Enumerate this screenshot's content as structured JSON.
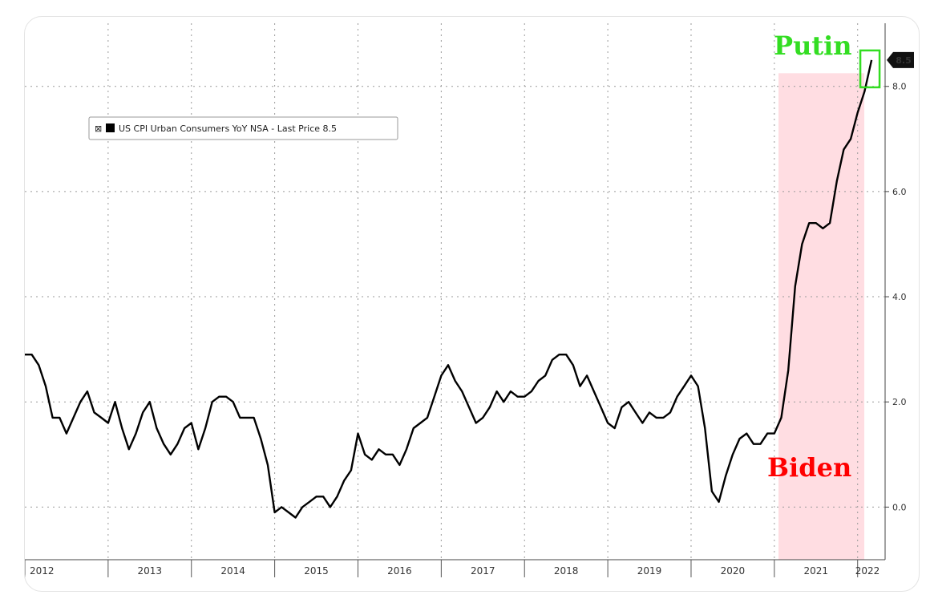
{
  "chart_data": {
    "type": "line",
    "legend": {
      "icon": "x-icon",
      "label": "US CPI Urban Consumers YoY NSA - Last Price 8.5",
      "placement": "top-left"
    },
    "last_price_label": "8.5",
    "y_ticks": [
      "0.0",
      "2.0",
      "4.0",
      "6.0",
      "8.0"
    ],
    "y_tick_values": [
      0,
      2,
      4,
      6,
      8
    ],
    "ylim": [
      -1.0,
      9.2
    ],
    "x_range": [
      2012.0,
      2022.33
    ],
    "year_labels": [
      "2012",
      "2013",
      "2014",
      "2015",
      "2016",
      "2017",
      "2018",
      "2019",
      "2020",
      "2021",
      "2022"
    ],
    "year_label_positions": [
      2012.0,
      2013.0,
      2014.0,
      2015.0,
      2016.0,
      2017.0,
      2018.0,
      2019.0,
      2020.0,
      2021.0,
      2022.0
    ],
    "grid": true,
    "line_color": "#000000",
    "series": [
      {
        "x": [
          2012.0,
          2012.083,
          2012.167,
          2012.25,
          2012.333,
          2012.417,
          2012.5,
          2012.583,
          2012.667,
          2012.75,
          2012.833,
          2012.917,
          2013.0,
          2013.083,
          2013.167,
          2013.25,
          2013.333,
          2013.417,
          2013.5,
          2013.583,
          2013.667,
          2013.75,
          2013.833,
          2013.917,
          2014.0,
          2014.083,
          2014.167,
          2014.25,
          2014.333,
          2014.417,
          2014.5,
          2014.583,
          2014.667,
          2014.75,
          2014.833,
          2014.917,
          2015.0,
          2015.083,
          2015.167,
          2015.25,
          2015.333,
          2015.417,
          2015.5,
          2015.583,
          2015.667,
          2015.75,
          2015.833,
          2015.917,
          2016.0,
          2016.083,
          2016.167,
          2016.25,
          2016.333,
          2016.417,
          2016.5,
          2016.583,
          2016.667,
          2016.75,
          2016.833,
          2016.917,
          2017.0,
          2017.083,
          2017.167,
          2017.25,
          2017.333,
          2017.417,
          2017.5,
          2017.583,
          2017.667,
          2017.75,
          2017.833,
          2017.917,
          2018.0,
          2018.083,
          2018.167,
          2018.25,
          2018.333,
          2018.417,
          2018.5,
          2018.583,
          2018.667,
          2018.75,
          2018.833,
          2018.917,
          2019.0,
          2019.083,
          2019.167,
          2019.25,
          2019.333,
          2019.417,
          2019.5,
          2019.583,
          2019.667,
          2019.75,
          2019.833,
          2019.917,
          2020.0,
          2020.083,
          2020.167,
          2020.25,
          2020.333,
          2020.417,
          2020.5,
          2020.583,
          2020.667,
          2020.75,
          2020.833,
          2020.917,
          2021.0,
          2021.083,
          2021.167,
          2021.25,
          2021.333,
          2021.417,
          2021.5,
          2021.583,
          2021.667,
          2021.75,
          2021.833,
          2021.917,
          2022.0,
          2022.083,
          2022.167
        ],
        "y": [
          2.9,
          2.9,
          2.7,
          2.3,
          1.7,
          1.7,
          1.4,
          1.7,
          2.0,
          2.2,
          1.8,
          1.7,
          1.6,
          2.0,
          1.5,
          1.1,
          1.4,
          1.8,
          2.0,
          1.5,
          1.2,
          1.0,
          1.2,
          1.5,
          1.6,
          1.1,
          1.5,
          2.0,
          2.1,
          2.1,
          2.0,
          1.7,
          1.7,
          1.7,
          1.3,
          0.8,
          -0.1,
          0.0,
          -0.1,
          -0.2,
          0.0,
          0.1,
          0.2,
          0.2,
          0.0,
          0.2,
          0.5,
          0.7,
          1.4,
          1.0,
          0.9,
          1.1,
          1.0,
          1.0,
          0.8,
          1.1,
          1.5,
          1.6,
          1.7,
          2.1,
          2.5,
          2.7,
          2.4,
          2.2,
          1.9,
          1.6,
          1.7,
          1.9,
          2.2,
          2.0,
          2.2,
          2.1,
          2.1,
          2.2,
          2.4,
          2.5,
          2.8,
          2.9,
          2.9,
          2.7,
          2.3,
          2.5,
          2.2,
          1.9,
          1.6,
          1.5,
          1.9,
          2.0,
          1.8,
          1.6,
          1.8,
          1.7,
          1.7,
          1.8,
          2.1,
          2.3,
          2.5,
          2.3,
          1.5,
          0.3,
          0.1,
          0.6,
          1.0,
          1.3,
          1.4,
          1.2,
          1.2,
          1.4,
          1.4,
          1.7,
          2.6,
          4.2,
          5.0,
          5.4,
          5.4,
          5.3,
          5.4,
          6.2,
          6.8,
          7.0,
          7.5,
          7.9,
          8.5
        ]
      }
    ],
    "shaded_region": {
      "x_start": 2021.05,
      "x_end": 2022.08,
      "color": "#ffdde2",
      "label": "Biden",
      "label_color": "#ff0000"
    },
    "highlight_box": {
      "label": "Putin",
      "color": "#33dd22",
      "x": 2022.167,
      "y": 8.5
    }
  }
}
